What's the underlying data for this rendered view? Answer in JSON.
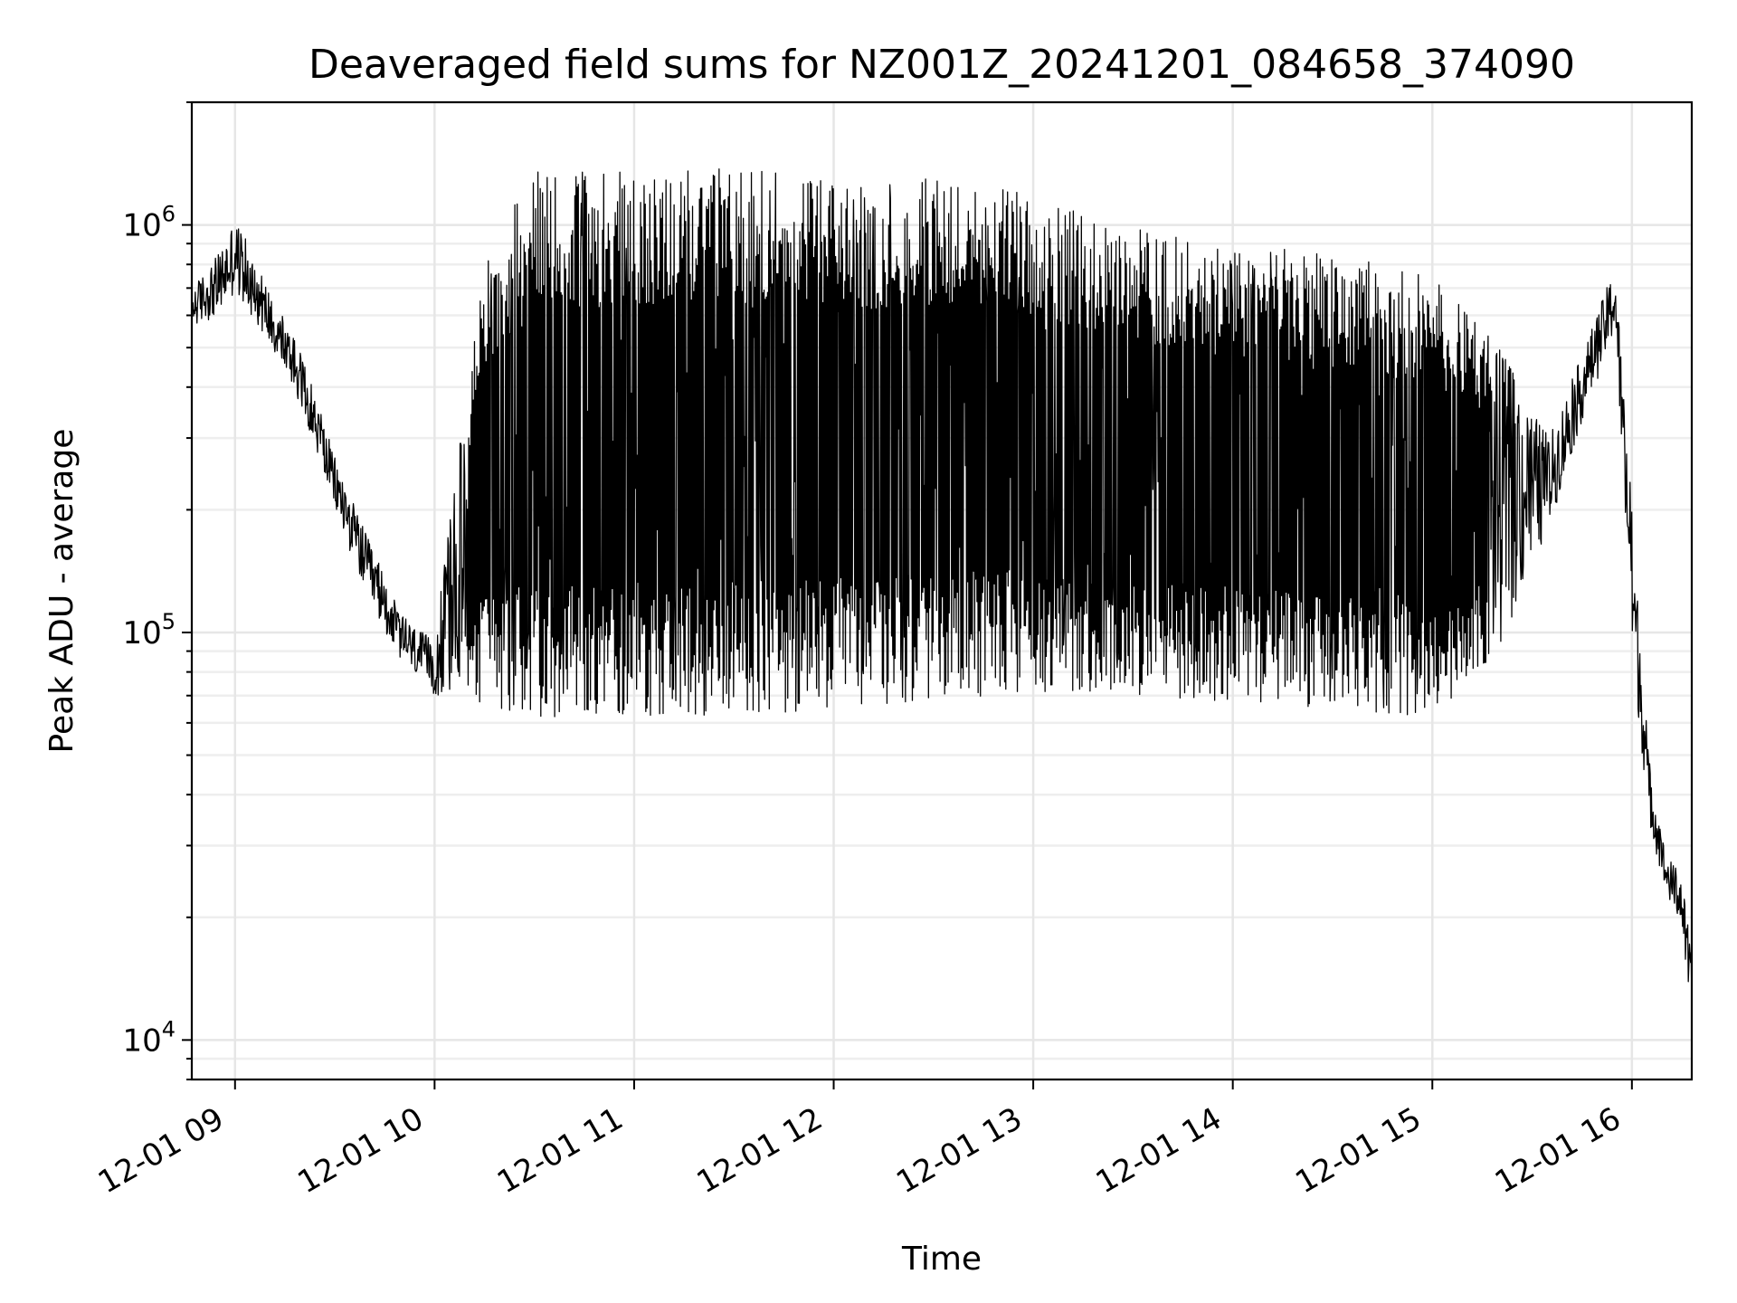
{
  "chart_data": {
    "type": "line",
    "title": "Deaveraged field sums for NZ001Z_20241201_084658_374090",
    "xlabel": "Time",
    "ylabel": "Peak ADU - average",
    "yscale": "log",
    "grid": "on",
    "xlim": [
      "2024-12-01 08:47",
      "2024-12-01 16:18"
    ],
    "ylim": [
      8000,
      2000000
    ],
    "x_ticks": [
      "12-01 09",
      "12-01 10",
      "12-01 11",
      "12-01 12",
      "12-01 13",
      "12-01 14",
      "12-01 15",
      "12-01 16"
    ],
    "y_ticks": [
      {
        "base": "10",
        "exp": "4"
      },
      {
        "base": "10",
        "exp": "5"
      },
      {
        "base": "10",
        "exp": "6"
      }
    ],
    "series": [
      {
        "color": "#000000",
        "envelope": [
          {
            "x": "2024-12-01 08:47",
            "low": 560000,
            "high": 700000
          },
          {
            "x": "2024-12-01 08:55",
            "low": 600000,
            "high": 850000
          },
          {
            "x": "2024-12-01 09:00",
            "low": 680000,
            "high": 1050000
          },
          {
            "x": "2024-12-01 09:10",
            "low": 520000,
            "high": 700000
          },
          {
            "x": "2024-12-01 09:20",
            "low": 360000,
            "high": 480000
          },
          {
            "x": "2024-12-01 09:30",
            "low": 200000,
            "high": 270000
          },
          {
            "x": "2024-12-01 09:40",
            "low": 120000,
            "high": 170000
          },
          {
            "x": "2024-12-01 09:50",
            "low": 85000,
            "high": 110000
          },
          {
            "x": "2024-12-01 10:00",
            "low": 70000,
            "high": 95000
          },
          {
            "x": "2024-12-01 10:15",
            "low": 65000,
            "high": 850000
          },
          {
            "x": "2024-12-01 10:30",
            "low": 62000,
            "high": 1350000
          },
          {
            "x": "2024-12-01 11:00",
            "low": 62000,
            "high": 1350000
          },
          {
            "x": "2024-12-01 11:30",
            "low": 62000,
            "high": 1400000
          },
          {
            "x": "2024-12-01 12:00",
            "low": 65000,
            "high": 1300000
          },
          {
            "x": "2024-12-01 12:30",
            "low": 68000,
            "high": 1300000
          },
          {
            "x": "2024-12-01 13:00",
            "low": 70000,
            "high": 1200000
          },
          {
            "x": "2024-12-01 13:30",
            "low": 68000,
            "high": 1000000
          },
          {
            "x": "2024-12-01 14:00",
            "low": 68000,
            "high": 900000
          },
          {
            "x": "2024-12-01 14:30",
            "low": 65000,
            "high": 850000
          },
          {
            "x": "2024-12-01 15:00",
            "low": 62000,
            "high": 750000
          },
          {
            "x": "2024-12-01 15:20",
            "low": 90000,
            "high": 500000
          },
          {
            "x": "2024-12-01 15:35",
            "low": 180000,
            "high": 300000
          },
          {
            "x": "2024-12-01 15:45",
            "low": 330000,
            "high": 480000
          },
          {
            "x": "2024-12-01 15:55",
            "low": 550000,
            "high": 800000
          },
          {
            "x": "2024-12-01 16:00",
            "low": 90000,
            "high": 200000
          },
          {
            "x": "2024-12-01 16:05",
            "low": 35000,
            "high": 50000
          },
          {
            "x": "2024-12-01 16:10",
            "low": 23000,
            "high": 29000
          },
          {
            "x": "2024-12-01 16:15",
            "low": 19000,
            "high": 25000
          },
          {
            "x": "2024-12-01 16:18",
            "low": 10000,
            "high": 16000
          }
        ]
      }
    ]
  }
}
